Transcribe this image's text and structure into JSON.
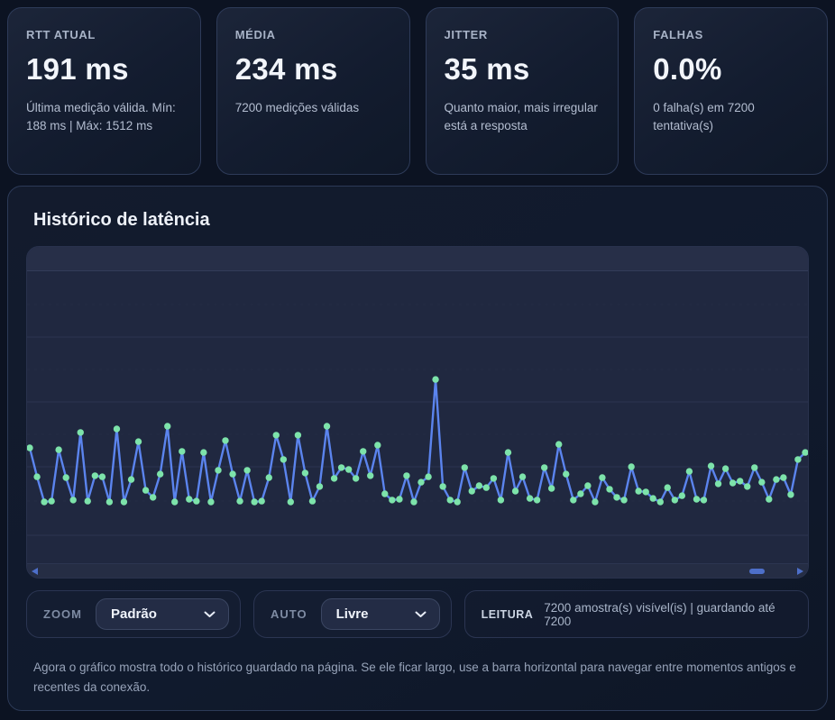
{
  "cards": [
    {
      "label": "RTT ATUAL",
      "value": "191 ms",
      "desc": "Última medição válida. Mín: 188 ms | Máx: 1512 ms"
    },
    {
      "label": "MÉDIA",
      "value": "234 ms",
      "desc": "7200 medições válidas"
    },
    {
      "label": "JITTER",
      "value": "35 ms",
      "desc": "Quanto maior, mais irregular está a resposta"
    },
    {
      "label": "FALHAS",
      "value": "0.0%",
      "desc": "0 falha(s) em 7200 tentativa(s)"
    }
  ],
  "history": {
    "title": "Histórico de latência",
    "zoom_label": "ZOOM",
    "zoom_value": "Padrão",
    "auto_label": "AUTO",
    "auto_value": "Livre",
    "leitura_label": "LEITURA",
    "leitura_value": "7200 amostra(s) visível(is) | guardando até 7200",
    "footer": "Agora o gráfico mostra todo o histórico guardado na página. Se ele ficar largo, use a barra horizontal para navegar entre momentos antigos e recentes da conexão."
  },
  "chart_data": {
    "type": "line",
    "title": "Histórico de latência",
    "xlabel": "",
    "ylabel": "",
    "unit": "ms",
    "ylim": [
      0,
      1050
    ],
    "grid": true,
    "values": [
      400,
      293,
      200,
      203,
      393,
      290,
      207,
      457,
      203,
      297,
      293,
      200,
      470,
      200,
      283,
      423,
      243,
      217,
      303,
      480,
      200,
      387,
      210,
      203,
      383,
      200,
      317,
      427,
      303,
      203,
      317,
      200,
      203,
      290,
      447,
      357,
      200,
      447,
      307,
      203,
      257,
      480,
      287,
      327,
      320,
      287,
      387,
      297,
      410,
      230,
      207,
      210,
      297,
      200,
      273,
      293,
      653,
      257,
      207,
      200,
      327,
      240,
      260,
      253,
      287,
      207,
      383,
      240,
      293,
      213,
      207,
      327,
      250,
      413,
      303,
      207,
      230,
      260,
      200,
      290,
      247,
      217,
      207,
      330,
      240,
      237,
      213,
      200,
      253,
      207,
      223,
      313,
      210,
      207,
      333,
      267,
      323,
      270,
      277,
      257,
      327,
      273,
      210,
      283,
      290,
      227,
      357,
      383
    ],
    "colors": {
      "line": "#5b84ee",
      "point": "#7de3aa",
      "grid_major": "#2d3651",
      "grid_minor": "#2a334d",
      "scroll_accent": "#4d6fc9"
    }
  }
}
